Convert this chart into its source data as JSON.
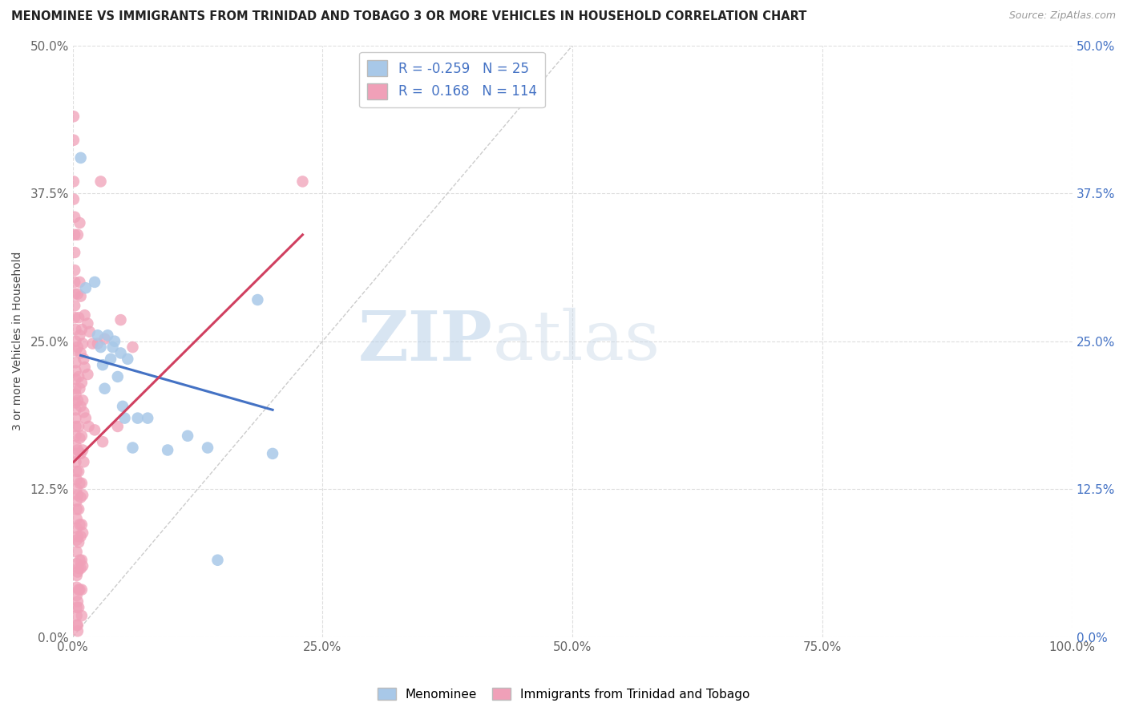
{
  "title": "MENOMINEE VS IMMIGRANTS FROM TRINIDAD AND TOBAGO 3 OR MORE VEHICLES IN HOUSEHOLD CORRELATION CHART",
  "source": "Source: ZipAtlas.com",
  "ylabel": "3 or more Vehicles in Household",
  "xlim": [
    0.0,
    1.0
  ],
  "ylim": [
    0.0,
    0.5
  ],
  "xticks": [
    0.0,
    0.25,
    0.5,
    0.75,
    1.0
  ],
  "xtick_labels": [
    "0.0%",
    "25.0%",
    "50.0%",
    "75.0%",
    "100.0%"
  ],
  "yticks": [
    0.0,
    0.125,
    0.25,
    0.375,
    0.5
  ],
  "ytick_labels": [
    "0.0%",
    "12.5%",
    "25.0%",
    "37.5%",
    "50.0%"
  ],
  "legend_R_blue": "-0.259",
  "legend_N_blue": "25",
  "legend_R_pink": "0.168",
  "legend_N_pink": "114",
  "blue_color": "#a8c8e8",
  "pink_color": "#f0a0b8",
  "line_blue": "#4472c4",
  "line_pink": "#d04060",
  "watermark_zip": "ZIP",
  "watermark_atlas": "atlas",
  "blue_points": [
    [
      0.008,
      0.405
    ],
    [
      0.013,
      0.295
    ],
    [
      0.022,
      0.3
    ],
    [
      0.025,
      0.255
    ],
    [
      0.028,
      0.245
    ],
    [
      0.03,
      0.23
    ],
    [
      0.032,
      0.21
    ],
    [
      0.035,
      0.255
    ],
    [
      0.038,
      0.235
    ],
    [
      0.04,
      0.245
    ],
    [
      0.042,
      0.25
    ],
    [
      0.045,
      0.22
    ],
    [
      0.048,
      0.24
    ],
    [
      0.05,
      0.195
    ],
    [
      0.052,
      0.185
    ],
    [
      0.055,
      0.235
    ],
    [
      0.06,
      0.16
    ],
    [
      0.065,
      0.185
    ],
    [
      0.075,
      0.185
    ],
    [
      0.095,
      0.158
    ],
    [
      0.115,
      0.17
    ],
    [
      0.135,
      0.16
    ],
    [
      0.145,
      0.065
    ],
    [
      0.185,
      0.285
    ],
    [
      0.2,
      0.155
    ]
  ],
  "pink_points": [
    [
      0.001,
      0.44
    ],
    [
      0.001,
      0.42
    ],
    [
      0.001,
      0.385
    ],
    [
      0.001,
      0.37
    ],
    [
      0.002,
      0.355
    ],
    [
      0.002,
      0.34
    ],
    [
      0.002,
      0.325
    ],
    [
      0.002,
      0.31
    ],
    [
      0.002,
      0.3
    ],
    [
      0.002,
      0.29
    ],
    [
      0.002,
      0.28
    ],
    [
      0.002,
      0.27
    ],
    [
      0.003,
      0.26
    ],
    [
      0.003,
      0.25
    ],
    [
      0.003,
      0.242
    ],
    [
      0.003,
      0.232
    ],
    [
      0.003,
      0.225
    ],
    [
      0.003,
      0.218
    ],
    [
      0.003,
      0.21
    ],
    [
      0.003,
      0.205
    ],
    [
      0.003,
      0.198
    ],
    [
      0.003,
      0.192
    ],
    [
      0.003,
      0.185
    ],
    [
      0.003,
      0.178
    ],
    [
      0.003,
      0.17
    ],
    [
      0.003,
      0.162
    ],
    [
      0.003,
      0.155
    ],
    [
      0.003,
      0.148
    ],
    [
      0.004,
      0.14
    ],
    [
      0.004,
      0.133
    ],
    [
      0.004,
      0.125
    ],
    [
      0.004,
      0.115
    ],
    [
      0.004,
      0.108
    ],
    [
      0.004,
      0.1
    ],
    [
      0.004,
      0.092
    ],
    [
      0.004,
      0.082
    ],
    [
      0.004,
      0.072
    ],
    [
      0.004,
      0.062
    ],
    [
      0.004,
      0.052
    ],
    [
      0.004,
      0.042
    ],
    [
      0.004,
      0.035
    ],
    [
      0.004,
      0.025
    ],
    [
      0.004,
      0.018
    ],
    [
      0.004,
      0.01
    ],
    [
      0.005,
      0.005
    ],
    [
      0.005,
      0.34
    ],
    [
      0.005,
      0.29
    ],
    [
      0.005,
      0.245
    ],
    [
      0.005,
      0.2
    ],
    [
      0.005,
      0.158
    ],
    [
      0.005,
      0.12
    ],
    [
      0.005,
      0.085
    ],
    [
      0.005,
      0.055
    ],
    [
      0.005,
      0.03
    ],
    [
      0.005,
      0.01
    ],
    [
      0.006,
      0.27
    ],
    [
      0.006,
      0.22
    ],
    [
      0.006,
      0.178
    ],
    [
      0.006,
      0.14
    ],
    [
      0.006,
      0.108
    ],
    [
      0.006,
      0.08
    ],
    [
      0.006,
      0.058
    ],
    [
      0.006,
      0.04
    ],
    [
      0.006,
      0.025
    ],
    [
      0.007,
      0.35
    ],
    [
      0.007,
      0.3
    ],
    [
      0.007,
      0.255
    ],
    [
      0.007,
      0.21
    ],
    [
      0.007,
      0.168
    ],
    [
      0.007,
      0.13
    ],
    [
      0.007,
      0.095
    ],
    [
      0.007,
      0.065
    ],
    [
      0.007,
      0.04
    ],
    [
      0.008,
      0.288
    ],
    [
      0.008,
      0.24
    ],
    [
      0.008,
      0.195
    ],
    [
      0.008,
      0.155
    ],
    [
      0.008,
      0.118
    ],
    [
      0.008,
      0.085
    ],
    [
      0.008,
      0.058
    ],
    [
      0.009,
      0.26
    ],
    [
      0.009,
      0.215
    ],
    [
      0.009,
      0.17
    ],
    [
      0.009,
      0.13
    ],
    [
      0.009,
      0.095
    ],
    [
      0.009,
      0.065
    ],
    [
      0.009,
      0.04
    ],
    [
      0.009,
      0.018
    ],
    [
      0.01,
      0.248
    ],
    [
      0.01,
      0.2
    ],
    [
      0.01,
      0.158
    ],
    [
      0.01,
      0.12
    ],
    [
      0.01,
      0.088
    ],
    [
      0.01,
      0.06
    ],
    [
      0.011,
      0.235
    ],
    [
      0.011,
      0.19
    ],
    [
      0.011,
      0.148
    ],
    [
      0.012,
      0.272
    ],
    [
      0.012,
      0.228
    ],
    [
      0.013,
      0.185
    ],
    [
      0.015,
      0.265
    ],
    [
      0.015,
      0.222
    ],
    [
      0.016,
      0.178
    ],
    [
      0.017,
      0.258
    ],
    [
      0.02,
      0.248
    ],
    [
      0.022,
      0.175
    ],
    [
      0.025,
      0.248
    ],
    [
      0.028,
      0.385
    ],
    [
      0.03,
      0.165
    ],
    [
      0.032,
      0.252
    ],
    [
      0.045,
      0.178
    ],
    [
      0.048,
      0.268
    ],
    [
      0.06,
      0.245
    ],
    [
      0.23,
      0.385
    ]
  ],
  "blue_line_pts": [
    [
      0.008,
      0.238
    ],
    [
      0.2,
      0.192
    ]
  ],
  "pink_line_pts": [
    [
      0.001,
      0.148
    ],
    [
      0.23,
      0.34
    ]
  ]
}
